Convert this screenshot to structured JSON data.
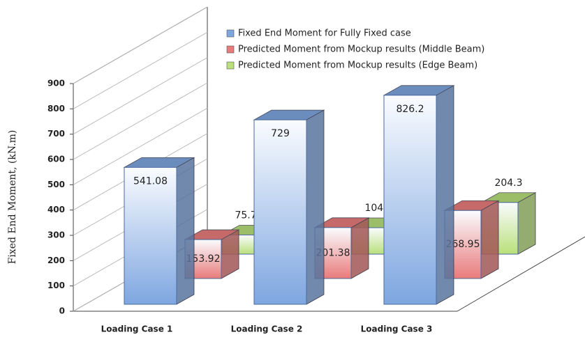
{
  "chart_data": {
    "type": "bar3d",
    "y_label": "Fixed End Moment, (kN.m)",
    "categories": [
      "Loading Case 1",
      "Loading Case 2",
      "Loading Case 3"
    ],
    "series": [
      {
        "name": "Fixed End Moment for Fully Fixed case",
        "color": "#7ea6e0",
        "values": [
          541.08,
          729,
          826.2
        ]
      },
      {
        "name": "Predicted Moment from Mockup results (Middle Beam)",
        "color": "#e87b7b",
        "values": [
          153.92,
          201.38,
          268.95
        ]
      },
      {
        "name": "Predicted Moment from Mockup results (Edge Beam)",
        "color": "#b9e07a",
        "values": [
          75.79,
          104.5,
          204.3
        ]
      }
    ],
    "ylim": [
      0,
      900
    ],
    "yticks": [
      0,
      100,
      200,
      300,
      400,
      500,
      600,
      700,
      800,
      900
    ],
    "grid": true
  }
}
